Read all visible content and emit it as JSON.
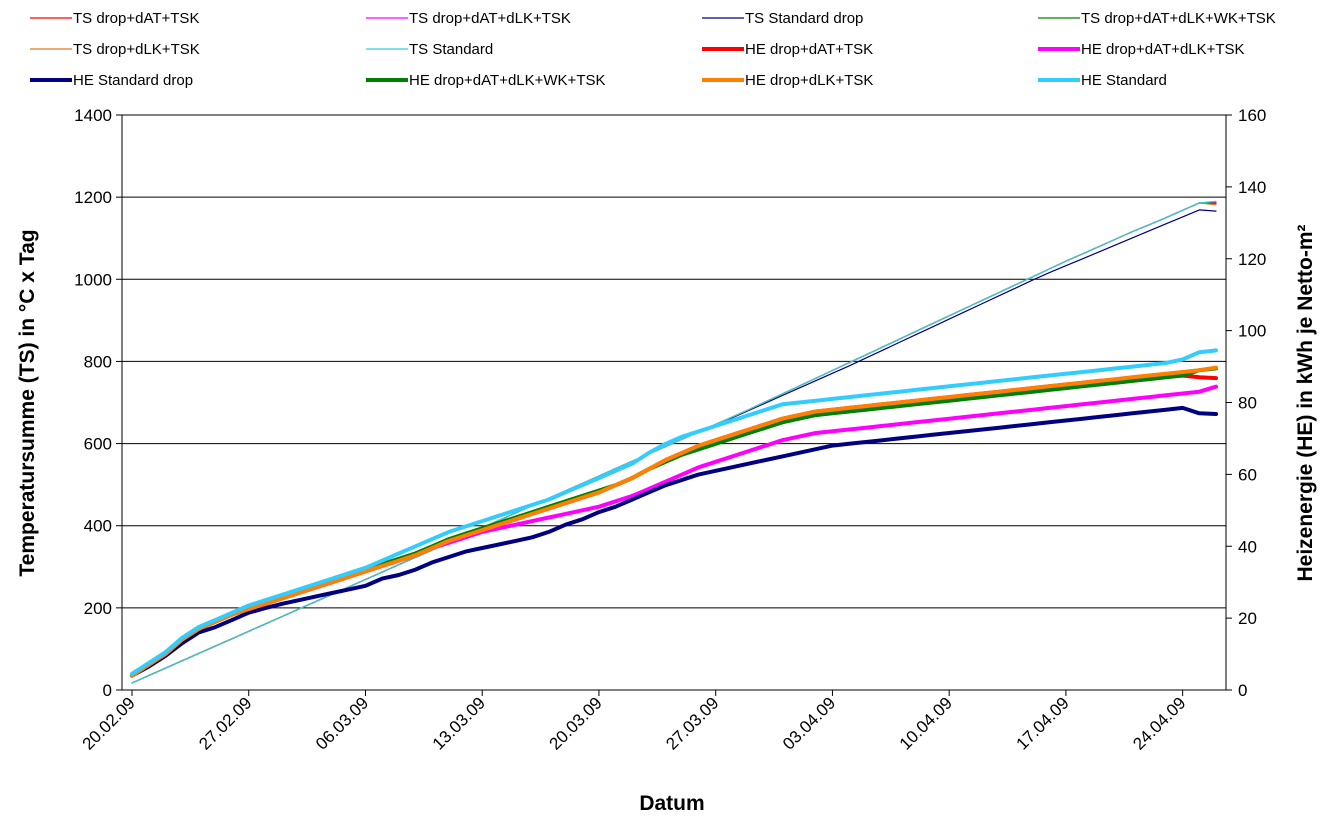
{
  "chart_data": {
    "type": "line",
    "x": [
      "20.02.09",
      "21.02.09",
      "22.02.09",
      "23.02.09",
      "24.02.09",
      "25.02.09",
      "26.02.09",
      "27.02.09",
      "28.02.09",
      "01.03.09",
      "02.03.09",
      "03.03.09",
      "04.03.09",
      "05.03.09",
      "06.03.09",
      "07.03.09",
      "08.03.09",
      "09.03.09",
      "10.03.09",
      "11.03.09",
      "12.03.09",
      "13.03.09",
      "14.03.09",
      "15.03.09",
      "16.03.09",
      "17.03.09",
      "18.03.09",
      "19.03.09",
      "20.03.09",
      "21.03.09",
      "22.03.09",
      "23.03.09",
      "24.03.09",
      "25.03.09",
      "26.03.09",
      "27.03.09",
      "28.03.09",
      "29.03.09",
      "30.03.09",
      "31.03.09",
      "01.04.09",
      "02.04.09",
      "03.04.09",
      "04.04.09",
      "05.04.09",
      "06.04.09",
      "07.04.09",
      "08.04.09",
      "09.04.09",
      "10.04.09",
      "11.04.09",
      "12.04.09",
      "13.04.09",
      "14.04.09",
      "15.04.09",
      "16.04.09",
      "17.04.09",
      "18.04.09",
      "19.04.09",
      "20.04.09",
      "21.04.09",
      "22.04.09",
      "23.04.09",
      "24.04.09",
      "25.04.09",
      "26.04.09"
    ],
    "x_ticks": [
      "20.02.09",
      "27.02.09",
      "06.03.09",
      "13.03.09",
      "20.03.09",
      "27.03.09",
      "03.04.09",
      "10.04.09",
      "17.04.09",
      "24.04.09"
    ],
    "xlabel": "Datum",
    "ylabel_left": "Temperatursumme (TS) in °C x Tag",
    "ylabel_right": "Heizenergie (HE) in kWh je Netto-m²",
    "ylim_left": [
      0,
      1400
    ],
    "ylim_right": [
      0,
      160
    ],
    "yticks_left": [
      0,
      200,
      400,
      600,
      800,
      1000,
      1200,
      1400
    ],
    "yticks_right": [
      0,
      20,
      40,
      60,
      80,
      100,
      120,
      140,
      160
    ],
    "grid": "horizontal",
    "legend_position": "top",
    "series": [
      {
        "name": "TS drop+dAT+TSK",
        "axis": "left",
        "color": "#ff0000",
        "width": 1.2,
        "values": [
          17,
          35,
          53,
          71,
          89,
          107,
          125,
          143,
          161,
          179,
          197,
          215,
          233,
          251,
          269,
          287,
          305,
          323,
          341,
          359,
          377,
          395,
          413,
          431,
          449,
          467,
          485,
          503,
          521,
          539,
          557,
          575,
          593,
          611,
          629,
          647,
          665,
          683,
          702,
          721,
          740,
          759,
          778,
          797,
          816,
          835,
          854,
          873,
          892,
          911,
          930,
          949,
          968,
          987,
          1006,
          1025,
          1044,
          1062,
          1080,
          1098,
          1116,
          1133,
          1150,
          1168,
          1186,
          1185
        ]
      },
      {
        "name": "TS drop+dAT+dLK+TSK",
        "axis": "left",
        "color": "#ff00ff",
        "width": 1.2,
        "values": [
          17,
          35,
          53,
          71,
          89,
          107,
          125,
          143,
          161,
          179,
          197,
          215,
          233,
          251,
          269,
          287,
          305,
          323,
          341,
          359,
          377,
          395,
          413,
          431,
          449,
          467,
          485,
          503,
          521,
          539,
          557,
          575,
          593,
          611,
          629,
          647,
          665,
          683,
          702,
          721,
          740,
          759,
          778,
          797,
          816,
          835,
          854,
          873,
          892,
          911,
          930,
          949,
          968,
          987,
          1006,
          1025,
          1044,
          1062,
          1080,
          1098,
          1116,
          1133,
          1150,
          1168,
          1186,
          1188
        ]
      },
      {
        "name": "TS Standard drop",
        "axis": "left",
        "color": "#000080",
        "width": 1.2,
        "values": [
          17,
          35,
          53,
          71,
          89,
          107,
          125,
          143,
          161,
          179,
          197,
          215,
          233,
          251,
          269,
          287,
          305,
          323,
          341,
          359,
          377,
          395,
          413,
          431,
          449,
          467,
          485,
          503,
          521,
          539,
          557,
          575,
          593,
          611,
          629,
          646,
          663,
          681,
          699,
          717,
          735,
          753,
          771,
          789,
          808,
          827,
          846,
          865,
          884,
          903,
          922,
          941,
          960,
          979,
          998,
          1016,
          1033,
          1050,
          1067,
          1084,
          1101,
          1118,
          1135,
          1152,
          1169,
          1166
        ]
      },
      {
        "name": "TS drop+dAT+dLK+WK+TSK",
        "axis": "left",
        "color": "#008000",
        "width": 1.2,
        "values": [
          17,
          35,
          53,
          71,
          89,
          107,
          125,
          143,
          161,
          179,
          197,
          215,
          233,
          251,
          269,
          287,
          305,
          323,
          341,
          359,
          377,
          395,
          413,
          431,
          449,
          467,
          485,
          503,
          521,
          539,
          557,
          575,
          593,
          611,
          629,
          647,
          665,
          683,
          702,
          721,
          740,
          759,
          778,
          797,
          816,
          835,
          854,
          873,
          892,
          911,
          930,
          949,
          968,
          987,
          1006,
          1025,
          1044,
          1062,
          1080,
          1098,
          1116,
          1133,
          1150,
          1168,
          1186,
          1185
        ]
      },
      {
        "name": "TS drop+dLK+TSK",
        "axis": "left",
        "color": "#e07820",
        "width": 1.2,
        "values": [
          17,
          35,
          53,
          71,
          89,
          107,
          125,
          143,
          161,
          179,
          197,
          215,
          233,
          251,
          269,
          287,
          305,
          323,
          341,
          359,
          377,
          395,
          413,
          431,
          449,
          467,
          485,
          503,
          521,
          539,
          557,
          575,
          593,
          611,
          629,
          647,
          665,
          683,
          702,
          721,
          740,
          759,
          778,
          797,
          816,
          835,
          854,
          873,
          892,
          911,
          930,
          949,
          968,
          987,
          1006,
          1025,
          1044,
          1062,
          1080,
          1098,
          1116,
          1133,
          1150,
          1168,
          1186,
          1181
        ]
      },
      {
        "name": "TS Standard",
        "axis": "left",
        "color": "#33ccdd",
        "width": 1.2,
        "values": [
          17,
          35,
          53,
          71,
          89,
          107,
          125,
          143,
          161,
          179,
          197,
          215,
          233,
          251,
          269,
          287,
          305,
          323,
          341,
          359,
          377,
          395,
          413,
          431,
          449,
          467,
          485,
          503,
          521,
          539,
          557,
          575,
          593,
          611,
          629,
          647,
          665,
          683,
          702,
          721,
          740,
          759,
          778,
          797,
          816,
          835,
          854,
          873,
          892,
          911,
          930,
          949,
          968,
          987,
          1006,
          1025,
          1044,
          1062,
          1080,
          1098,
          1116,
          1133,
          1150,
          1168,
          1186,
          1190
        ]
      },
      {
        "name": "HE drop+dAT+TSK",
        "axis": "right",
        "color": "#ff0000",
        "width": 4,
        "values": [
          4,
          7,
          10,
          14,
          17,
          19,
          21,
          22.5,
          24,
          25.5,
          27,
          28.5,
          30,
          31.5,
          33,
          34.5,
          36,
          37.5,
          39.5,
          41.5,
          43,
          44.5,
          46,
          47.5,
          49,
          50.5,
          52,
          53.5,
          55,
          57,
          59,
          61.5,
          64,
          66,
          68,
          69.5,
          71,
          72.5,
          74,
          75.5,
          76.5,
          77.5,
          78,
          78.5,
          79,
          79.5,
          80,
          80.5,
          81,
          81.5,
          82,
          82.5,
          83,
          83.5,
          84,
          84.5,
          85,
          85.5,
          86,
          86.3,
          86.6,
          86.9,
          87.2,
          87.5,
          87,
          86.8
        ]
      },
      {
        "name": "HE drop+dAT+dLK+TSK",
        "axis": "right",
        "color": "#ff00ff",
        "width": 4,
        "values": [
          4,
          7,
          10,
          14,
          17,
          19,
          21,
          22.5,
          24,
          25.5,
          27,
          28.5,
          30,
          31.5,
          33,
          34.5,
          36,
          37.5,
          39.5,
          41,
          42.5,
          44,
          45,
          46,
          47,
          48,
          49,
          50,
          51,
          52.5,
          54,
          56,
          58,
          60,
          62,
          63.5,
          65,
          66.5,
          68,
          69.5,
          70.5,
          71.5,
          72,
          72.5,
          73,
          73.5,
          74,
          74.5,
          75,
          75.5,
          76,
          76.5,
          77,
          77.5,
          78,
          78.5,
          79,
          79.5,
          80,
          80.5,
          81,
          81.5,
          82,
          82.5,
          83,
          84.4
        ]
      },
      {
        "name": "HE Standard drop",
        "axis": "right",
        "color": "#000080",
        "width": 4,
        "values": [
          4,
          6.5,
          9.5,
          13,
          16,
          17.5,
          19.5,
          21.5,
          22.8,
          24,
          25,
          26,
          27,
          28,
          29,
          31,
          32,
          33.5,
          35.5,
          37,
          38.5,
          39.5,
          40.5,
          41.5,
          42.5,
          44,
          46,
          47.5,
          49.5,
          51,
          53,
          55,
          57,
          58.5,
          60,
          61,
          62,
          63,
          64,
          65,
          66,
          67,
          68,
          68.5,
          69,
          69.5,
          70,
          70.5,
          71,
          71.5,
          72,
          72.5,
          73,
          73.5,
          74,
          74.5,
          75,
          75.5,
          76,
          76.5,
          77,
          77.5,
          78,
          78.5,
          77,
          76.8
        ]
      },
      {
        "name": "HE drop+dAT+dLK+WK+TSK",
        "axis": "right",
        "color": "#008000",
        "width": 4,
        "values": [
          4,
          7,
          10,
          14,
          17,
          19,
          21,
          23,
          24.5,
          26,
          27.5,
          29,
          30.5,
          32,
          33.5,
          35,
          36.5,
          38,
          40,
          42,
          43.5,
          45,
          46.5,
          48,
          49.5,
          51,
          52.5,
          54,
          55.5,
          57,
          59,
          61.5,
          63.5,
          65.5,
          67,
          68.5,
          70,
          71.5,
          73,
          74.5,
          75.5,
          76.5,
          77,
          77.5,
          78,
          78.5,
          79,
          79.5,
          80,
          80.5,
          81,
          81.5,
          82,
          82.5,
          83,
          83.5,
          84,
          84.5,
          85,
          85.5,
          86,
          86.5,
          87,
          87.5,
          89,
          89.5
        ]
      },
      {
        "name": "HE drop+dLK+TSK",
        "axis": "right",
        "color": "#ff7f00",
        "width": 4,
        "values": [
          4,
          7,
          10,
          14,
          17,
          19,
          21,
          22.5,
          24,
          25.5,
          27,
          28.5,
          30,
          31.5,
          33,
          34.5,
          36,
          37.5,
          39.5,
          41.5,
          43,
          44.5,
          46,
          47.5,
          49,
          50.5,
          52,
          53.5,
          55,
          57,
          59,
          61.5,
          64,
          66,
          68,
          69.5,
          71,
          72.5,
          74,
          75.5,
          76.5,
          77.5,
          78,
          78.5,
          79,
          79.5,
          80,
          80.5,
          81,
          81.5,
          82,
          82.5,
          83,
          83.5,
          84,
          84.5,
          85,
          85.5,
          86,
          86.5,
          87,
          87.5,
          88,
          88.5,
          89,
          89.7
        ]
      },
      {
        "name": "HE Standard",
        "axis": "right",
        "color": "#33ccff",
        "width": 4,
        "values": [
          4.5,
          7.5,
          10.5,
          14.5,
          17.5,
          19.5,
          21.5,
          23.5,
          25,
          26.5,
          28,
          29.5,
          31,
          32.5,
          34,
          36,
          38,
          40,
          42,
          44,
          45.5,
          47,
          48.5,
          50,
          51.5,
          53,
          55,
          57,
          59,
          61,
          63,
          66,
          68.5,
          70.5,
          72,
          73.5,
          75,
          76.5,
          78,
          79.5,
          80,
          80.5,
          81,
          81.5,
          82,
          82.5,
          83,
          83.5,
          84,
          84.5,
          85,
          85.5,
          86,
          86.5,
          87,
          87.5,
          88,
          88.5,
          89,
          89.5,
          90,
          90.5,
          91,
          92,
          94,
          94.5
        ]
      }
    ]
  },
  "legend": {
    "items": [
      {
        "label": "TS drop+dAT+TSK",
        "color": "#ff0000",
        "width": 1.2
      },
      {
        "label": "TS drop+dAT+dLK+TSK",
        "color": "#ff00ff",
        "width": 1.2
      },
      {
        "label": "TS Standard drop",
        "color": "#000080",
        "width": 1.2
      },
      {
        "label": "TS drop+dAT+dLK+WK+TSK",
        "color": "#008000",
        "width": 1.2
      },
      {
        "label": "TS drop+dLK+TSK",
        "color": "#e07820",
        "width": 1.2
      },
      {
        "label": "TS Standard",
        "color": "#33ccdd",
        "width": 1.2
      },
      {
        "label": "HE drop+dAT+TSK",
        "color": "#ff0000",
        "width": 4
      },
      {
        "label": "HE drop+dAT+dLK+TSK",
        "color": "#ff00ff",
        "width": 4
      },
      {
        "label": "HE Standard drop",
        "color": "#000080",
        "width": 4
      },
      {
        "label": "HE drop+dAT+dLK+WK+TSK",
        "color": "#008000",
        "width": 4
      },
      {
        "label": "HE drop+dLK+TSK",
        "color": "#ff7f00",
        "width": 4
      },
      {
        "label": "HE Standard",
        "color": "#33ccff",
        "width": 4
      }
    ]
  }
}
